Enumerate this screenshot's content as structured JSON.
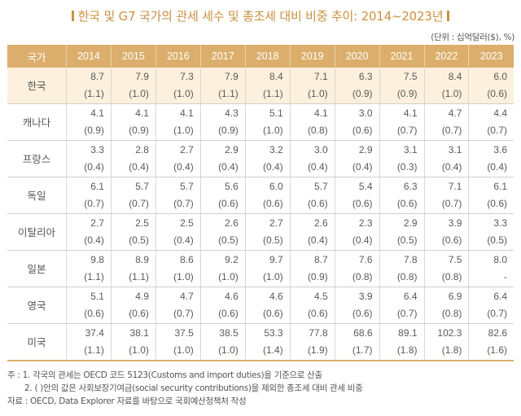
{
  "title": "한국 및 G7 국가의 관세 세수 및 총조세 대비 비중 추이: 2014~2023년",
  "unit": "(단위 : 십억달러($), %)",
  "colors": {
    "header_bg": "#dcae6c",
    "highlight_row_bg": "#fdf0dc",
    "title": "#c9913f"
  },
  "table": {
    "headers": [
      "국가",
      "2014",
      "2015",
      "2016",
      "2017",
      "2018",
      "2019",
      "2020",
      "2021",
      "2022",
      "2023"
    ],
    "rows": [
      {
        "country": "한국",
        "values": [
          "8.7",
          "7.9",
          "7.3",
          "7.9",
          "8.4",
          "7.1",
          "6.3",
          "7.5",
          "8.4",
          "6.0"
        ],
        "shares": [
          "(1.1)",
          "(1.0)",
          "(1.0)",
          "(1.1)",
          "(1.1)",
          "(1.0)",
          "(0.9)",
          "(0.9)",
          "(1.0)",
          "(0.6)"
        ]
      },
      {
        "country": "캐나다",
        "values": [
          "4.1",
          "4.1",
          "4.1",
          "4.3",
          "5.1",
          "4.1",
          "3.0",
          "4.1",
          "4.7",
          "4.4"
        ],
        "shares": [
          "(0.9)",
          "(0.9)",
          "(1.0)",
          "(0.9)",
          "(1.0)",
          "(0.8)",
          "(0.6)",
          "(0.7)",
          "(0.7)",
          "(0.7)"
        ]
      },
      {
        "country": "프랑스",
        "values": [
          "3.3",
          "2.8",
          "2.7",
          "2.9",
          "3.2",
          "3.0",
          "2.9",
          "3.1",
          "3.1",
          "3.6"
        ],
        "shares": [
          "(0.4)",
          "(0.4)",
          "(0.4)",
          "(0.4)",
          "(0.4)",
          "(0.4)",
          "(0.4)",
          "(0.3)",
          "(0.4)",
          "(0.4)"
        ]
      },
      {
        "country": "독일",
        "values": [
          "6.1",
          "5.7",
          "5.7",
          "5.6",
          "6.0",
          "5.7",
          "5.4",
          "6.3",
          "7.1",
          "6.1"
        ],
        "shares": [
          "(0.7)",
          "(0.7)",
          "(0.7)",
          "(0.6)",
          "(0.6)",
          "(0.6)",
          "(0.6)",
          "(0.6)",
          "(0.7)",
          "(0.6)"
        ]
      },
      {
        "country": "이탈리아",
        "values": [
          "2.7",
          "2.5",
          "2.5",
          "2.6",
          "2.7",
          "2.6",
          "2.3",
          "2.9",
          "3.9",
          "3.3"
        ],
        "shares": [
          "(0.4)",
          "(0.5)",
          "(0.4)",
          "(0.5)",
          "(0.5)",
          "(0.4)",
          "(0.4)",
          "(0.5)",
          "(0.6)",
          "(0.5)"
        ]
      },
      {
        "country": "일본",
        "values": [
          "9.8",
          "8.9",
          "8.6",
          "9.2",
          "9.7",
          "8.7",
          "7.6",
          "7.8",
          "7.5",
          "8.0"
        ],
        "shares": [
          "(1.1)",
          "(1.1)",
          "(1.0)",
          "(1.0)",
          "(1.0)",
          "(0.9)",
          "(0.8)",
          "(0.8)",
          "(0.8)",
          "-"
        ]
      },
      {
        "country": "영국",
        "values": [
          "5.1",
          "4.9",
          "4.7",
          "4.6",
          "4.6",
          "4.5",
          "3.9",
          "6.4",
          "6.9",
          "6.4"
        ],
        "shares": [
          "(0.6)",
          "(0.6)",
          "(0.7)",
          "(0.6)",
          "(0.6)",
          "(0.6)",
          "(0.6)",
          "(0.7)",
          "(0.8)",
          "(0.7)"
        ]
      },
      {
        "country": "미국",
        "values": [
          "37.4",
          "38.1",
          "37.5",
          "38.5",
          "53.3",
          "77.8",
          "68.6",
          "89.1",
          "102.3",
          "82.6"
        ],
        "shares": [
          "(1.1)",
          "(1.0)",
          "(1.0)",
          "(1.0)",
          "(1.4)",
          "(1.9)",
          "(1.7)",
          "(1.8)",
          "(1.8)",
          "(1.6)"
        ]
      }
    ]
  },
  "notes": [
    "주 : 1. 각국의 관세는 OECD 코드 5123(Customs and import duties)을 기준으로 산출",
    "2. ( )안의 값은 사회보장기여금(social security contributions)을 제외한 총조세 대비 관세 비중",
    "자료 : OECD, Data Explorer 자료를 바탕으로 국회예산정책처 작성"
  ]
}
